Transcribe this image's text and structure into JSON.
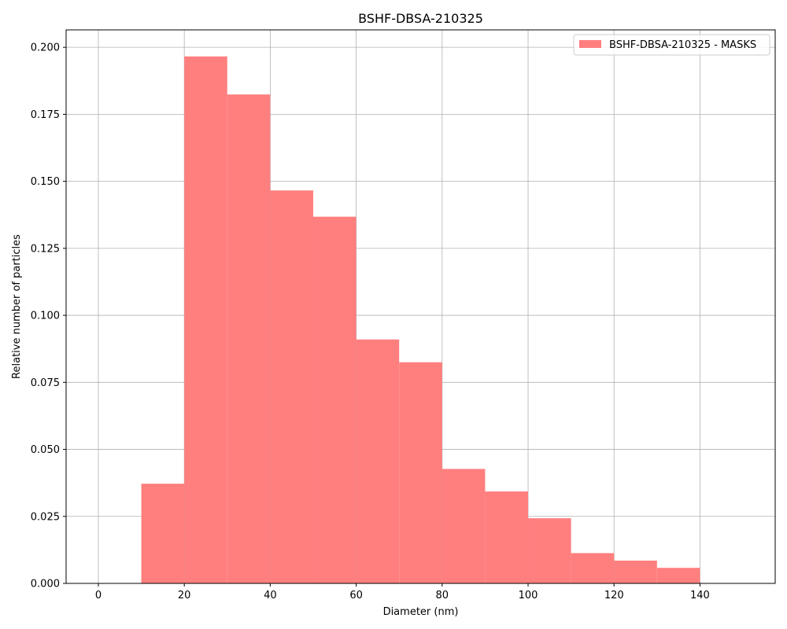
{
  "chart_data": {
    "type": "bar",
    "title": "BSHF-DBSA-210325",
    "xlabel": "Diameter (nm)",
    "ylabel": "Relative number of particles",
    "xlim": [
      -7.5,
      157.5
    ],
    "ylim": [
      0,
      0.2065
    ],
    "xticks": [
      0,
      20,
      40,
      60,
      80,
      100,
      120,
      140
    ],
    "yticks": [
      0.0,
      0.025,
      0.05,
      0.075,
      0.1,
      0.125,
      0.15,
      0.175,
      0.2
    ],
    "xtick_labels": [
      "0",
      "20",
      "40",
      "60",
      "80",
      "100",
      "120",
      "140"
    ],
    "ytick_labels": [
      "0.000",
      "0.025",
      "0.050",
      "0.075",
      "0.100",
      "0.125",
      "0.150",
      "0.175",
      "0.200"
    ],
    "grid": true,
    "legend_position": "top-right",
    "series": [
      {
        "name": "BSHF-DBSA-210325 - MASKS",
        "color": "#ff7f7f",
        "bins": [
          {
            "start": 10,
            "end": 20,
            "value": 0.0372
          },
          {
            "start": 20,
            "end": 30,
            "value": 0.1966
          },
          {
            "start": 30,
            "end": 40,
            "value": 0.1824
          },
          {
            "start": 40,
            "end": 50,
            "value": 0.1466
          },
          {
            "start": 50,
            "end": 60,
            "value": 0.1368
          },
          {
            "start": 60,
            "end": 70,
            "value": 0.091
          },
          {
            "start": 70,
            "end": 80,
            "value": 0.0825
          },
          {
            "start": 80,
            "end": 90,
            "value": 0.0427
          },
          {
            "start": 90,
            "end": 100,
            "value": 0.0343
          },
          {
            "start": 100,
            "end": 110,
            "value": 0.0243
          },
          {
            "start": 110,
            "end": 120,
            "value": 0.0113
          },
          {
            "start": 120,
            "end": 130,
            "value": 0.0085
          },
          {
            "start": 130,
            "end": 140,
            "value": 0.0058
          }
        ]
      }
    ]
  }
}
